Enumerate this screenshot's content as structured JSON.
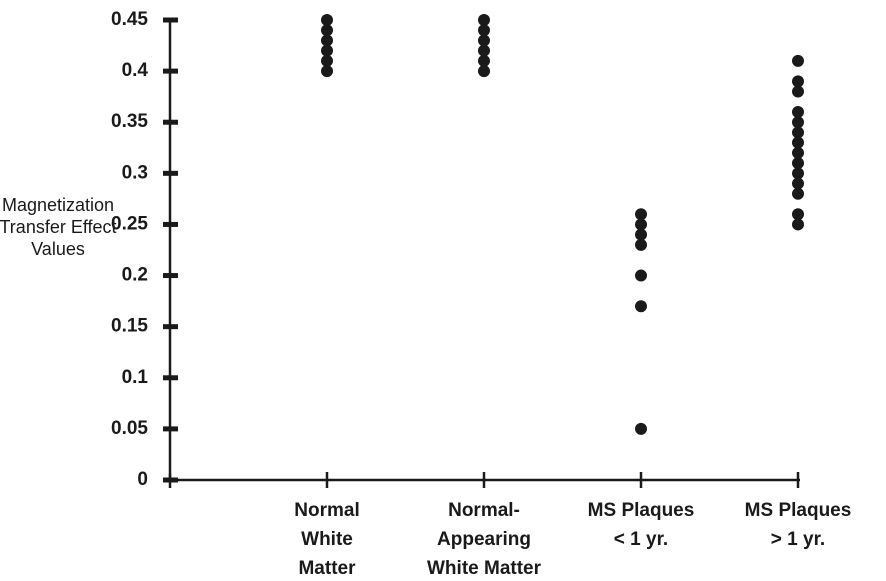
{
  "chart_data": {
    "type": "scatter",
    "y_label": [
      "Magnetization",
      "Transfer Effect",
      "Values"
    ],
    "categories": [
      [
        "Normal",
        "White",
        "Matter"
      ],
      [
        "Normal-",
        "Appearing",
        "White Matter"
      ],
      [
        "MS Plaques",
        "< 1 yr."
      ],
      [
        "MS Plaques",
        "> 1 yr."
      ]
    ],
    "values": [
      [
        0.45,
        0.44,
        0.43,
        0.42,
        0.41,
        0.4
      ],
      [
        0.45,
        0.44,
        0.43,
        0.42,
        0.41,
        0.4
      ],
      [
        0.26,
        0.25,
        0.24,
        0.23,
        0.2,
        0.17,
        0.05
      ],
      [
        0.41,
        0.39,
        0.38,
        0.36,
        0.35,
        0.34,
        0.33,
        0.32,
        0.31,
        0.3,
        0.29,
        0.28,
        0.26,
        0.25
      ]
    ],
    "color": "#1a1a1a",
    "ylim": [
      0,
      0.45
    ],
    "yticks": [
      0,
      0.05,
      0.1,
      0.15,
      0.2,
      0.25,
      0.3,
      0.35,
      0.4,
      0.45
    ]
  }
}
